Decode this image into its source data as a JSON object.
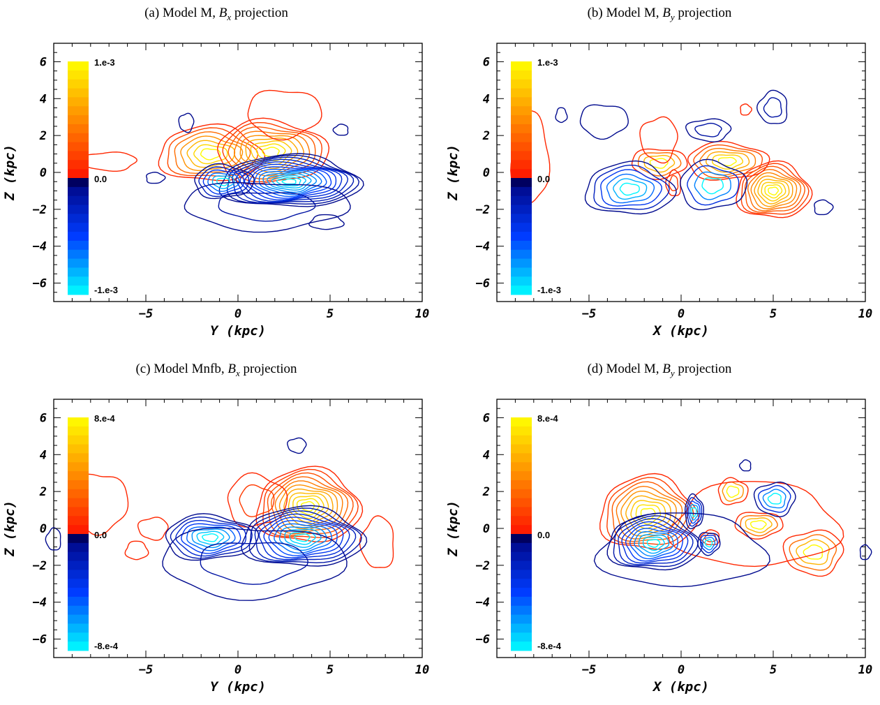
{
  "chart_data": [
    {
      "type": "contour",
      "panel": "a",
      "title_prefix": "(a) Model M, ",
      "title_sym": "B",
      "title_sub": "x",
      "title_suffix": " projection",
      "xlabel": "Y (kpc)",
      "ylabel": "Z (kpc)",
      "xlim": [
        -10,
        10
      ],
      "ylim": [
        -7,
        7
      ],
      "x_ticks": [
        -5,
        0,
        5,
        10
      ],
      "y_ticks": [
        -6,
        -4,
        -2,
        0,
        2,
        4,
        6
      ],
      "colorbar": {
        "max_label": "1.e-3",
        "mid_label": "0.0",
        "min_label": "-1.e-3"
      },
      "positive_blobs": [
        {
          "cx": -1.5,
          "cy": 1.0,
          "rx": 2.8,
          "ry": 1.5,
          "levels": 7
        },
        {
          "cx": 1.8,
          "cy": 1.1,
          "rx": 3.0,
          "ry": 1.7,
          "levels": 9
        },
        {
          "cx": 2.5,
          "cy": 3.2,
          "rx": 2.0,
          "ry": 1.3,
          "levels": 1
        },
        {
          "cx": -7.0,
          "cy": 0.6,
          "rx": 1.5,
          "ry": 0.5,
          "levels": 1
        }
      ],
      "negative_blobs": [
        {
          "cx": 2.8,
          "cy": -0.5,
          "rx": 3.8,
          "ry": 1.4,
          "levels": 14
        },
        {
          "cx": -0.8,
          "cy": -0.5,
          "rx": 1.6,
          "ry": 0.9,
          "levels": 6
        },
        {
          "cx": 1.5,
          "cy": -1.8,
          "rx": 4.5,
          "ry": 1.3,
          "levels": 2
        },
        {
          "cx": -2.8,
          "cy": 2.7,
          "rx": 0.4,
          "ry": 0.5,
          "levels": 1
        },
        {
          "cx": 5.6,
          "cy": 2.3,
          "rx": 0.4,
          "ry": 0.3,
          "levels": 1
        },
        {
          "cx": 4.8,
          "cy": -2.7,
          "rx": 0.9,
          "ry": 0.4,
          "levels": 1
        },
        {
          "cx": -4.5,
          "cy": -0.3,
          "rx": 0.5,
          "ry": 0.3,
          "levels": 1
        }
      ]
    },
    {
      "type": "contour",
      "panel": "b",
      "title_prefix": "(b) Model M, ",
      "title_sym": "B",
      "title_sub": "y",
      "title_suffix": " projection",
      "xlabel": "X (kpc)",
      "ylabel": "Z (kpc)",
      "xlim": [
        -10,
        10
      ],
      "ylim": [
        -7,
        7
      ],
      "x_ticks": [
        -5,
        0,
        5,
        10
      ],
      "y_ticks": [
        -6,
        -4,
        -2,
        0,
        2,
        4,
        6
      ],
      "colorbar": {
        "max_label": "1.e-3",
        "mid_label": "0.0",
        "min_label": "-1.e-3"
      },
      "positive_blobs": [
        {
          "cx": 5.0,
          "cy": -1.0,
          "rx": 2.0,
          "ry": 1.5,
          "levels": 10
        },
        {
          "cx": 2.5,
          "cy": 0.6,
          "rx": 2.2,
          "ry": 1.0,
          "levels": 6
        },
        {
          "cx": -1.2,
          "cy": 0.5,
          "rx": 1.5,
          "ry": 0.8,
          "levels": 4
        },
        {
          "cx": -1.2,
          "cy": 1.8,
          "rx": 1.0,
          "ry": 1.2,
          "levels": 1
        },
        {
          "cx": -0.4,
          "cy": -0.6,
          "rx": 0.4,
          "ry": 0.7,
          "levels": 2
        },
        {
          "cx": -8.2,
          "cy": 0.8,
          "rx": 1.0,
          "ry": 2.5,
          "levels": 1
        },
        {
          "cx": 3.5,
          "cy": 3.4,
          "rx": 0.3,
          "ry": 0.3,
          "levels": 1
        }
      ],
      "negative_blobs": [
        {
          "cx": -2.8,
          "cy": -0.9,
          "rx": 2.4,
          "ry": 1.4,
          "levels": 6
        },
        {
          "cx": 1.7,
          "cy": -0.7,
          "rx": 1.8,
          "ry": 1.3,
          "levels": 4
        },
        {
          "cx": -4.2,
          "cy": 2.8,
          "rx": 1.3,
          "ry": 0.9,
          "levels": 1
        },
        {
          "cx": 1.5,
          "cy": 2.3,
          "rx": 1.2,
          "ry": 0.6,
          "levels": 2
        },
        {
          "cx": 5.0,
          "cy": 3.5,
          "rx": 0.8,
          "ry": 0.9,
          "levels": 2
        },
        {
          "cx": -6.5,
          "cy": 3.1,
          "rx": 0.3,
          "ry": 0.4,
          "levels": 1
        },
        {
          "cx": 7.7,
          "cy": -1.9,
          "rx": 0.5,
          "ry": 0.4,
          "levels": 1
        }
      ]
    },
    {
      "type": "contour",
      "panel": "c",
      "title_prefix": "(c) Model Mnfb, ",
      "title_sym": "B",
      "title_sub": "x",
      "title_suffix": " projection",
      "xlabel": "Y (kpc)",
      "ylabel": "Z (kpc)",
      "xlim": [
        -10,
        10
      ],
      "ylim": [
        -7,
        7
      ],
      "x_ticks": [
        -5,
        0,
        5,
        10
      ],
      "y_ticks": [
        -6,
        -4,
        -2,
        0,
        2,
        4,
        6
      ],
      "colorbar": {
        "max_label": "8.e-4",
        "mid_label": "0.0",
        "min_label": "-8.e-4"
      },
      "positive_blobs": [
        {
          "cx": 3.8,
          "cy": 1.2,
          "rx": 2.8,
          "ry": 2.0,
          "levels": 11
        },
        {
          "cx": 1.0,
          "cy": 1.5,
          "rx": 1.6,
          "ry": 1.4,
          "levels": 2
        },
        {
          "cx": -7.5,
          "cy": 1.4,
          "rx": 1.5,
          "ry": 1.6,
          "levels": 1
        },
        {
          "cx": -4.6,
          "cy": 0.0,
          "rx": 0.8,
          "ry": 0.6,
          "levels": 1
        },
        {
          "cx": 7.6,
          "cy": -0.8,
          "rx": 0.9,
          "ry": 1.4,
          "levels": 1
        },
        {
          "cx": -5.5,
          "cy": -1.2,
          "rx": 0.6,
          "ry": 0.5,
          "levels": 1
        }
      ],
      "negative_blobs": [
        {
          "cx": 3.5,
          "cy": -0.5,
          "rx": 3.3,
          "ry": 1.6,
          "levels": 11
        },
        {
          "cx": -1.5,
          "cy": -0.5,
          "rx": 2.5,
          "ry": 1.2,
          "levels": 8
        },
        {
          "cx": 0.8,
          "cy": -1.8,
          "rx": 5.0,
          "ry": 1.9,
          "levels": 2
        },
        {
          "cx": 3.2,
          "cy": 4.5,
          "rx": 0.5,
          "ry": 0.4,
          "levels": 1
        },
        {
          "cx": -10.0,
          "cy": -0.6,
          "rx": 0.4,
          "ry": 0.6,
          "levels": 1
        }
      ]
    },
    {
      "type": "contour",
      "panel": "d",
      "title_prefix": "(d) Model M, ",
      "title_sym": "B",
      "title_sub": "y",
      "title_suffix": " projection",
      "xlabel": "X (kpc)",
      "ylabel": "Z (kpc)",
      "xlim": [
        -10,
        10
      ],
      "ylim": [
        -7,
        7
      ],
      "x_ticks": [
        -5,
        0,
        5,
        10
      ],
      "y_ticks": [
        -6,
        -4,
        -2,
        0,
        2,
        4,
        6
      ],
      "colorbar": {
        "max_label": "8.e-4",
        "mid_label": "0.0",
        "min_label": "-8.e-4"
      },
      "positive_blobs": [
        {
          "cx": -1.8,
          "cy": 0.8,
          "rx": 2.6,
          "ry": 2.0,
          "levels": 9
        },
        {
          "cx": 2.8,
          "cy": 2.0,
          "rx": 0.8,
          "ry": 0.7,
          "levels": 3
        },
        {
          "cx": 4.2,
          "cy": 0.2,
          "rx": 1.3,
          "ry": 0.7,
          "levels": 4
        },
        {
          "cx": 7.2,
          "cy": -1.3,
          "rx": 1.6,
          "ry": 1.2,
          "levels": 4
        },
        {
          "cx": 1.6,
          "cy": -0.5,
          "rx": 0.5,
          "ry": 0.4,
          "levels": 2
        },
        {
          "cx": 4.0,
          "cy": 0.2,
          "rx": 4.5,
          "ry": 2.3,
          "levels": 1
        }
      ],
      "negative_blobs": [
        {
          "cx": -1.5,
          "cy": -0.8,
          "rx": 2.5,
          "ry": 1.5,
          "levels": 10
        },
        {
          "cx": 0.7,
          "cy": 0.9,
          "rx": 0.5,
          "ry": 0.9,
          "levels": 5
        },
        {
          "cx": 1.5,
          "cy": -0.8,
          "rx": 0.6,
          "ry": 0.6,
          "levels": 4
        },
        {
          "cx": 5.1,
          "cy": 1.6,
          "rx": 1.1,
          "ry": 0.9,
          "levels": 4
        },
        {
          "cx": 3.5,
          "cy": 3.4,
          "rx": 0.3,
          "ry": 0.3,
          "levels": 1
        },
        {
          "cx": 0.0,
          "cy": -1.2,
          "rx": 4.5,
          "ry": 2.0,
          "levels": 1
        },
        {
          "cx": 10.0,
          "cy": -1.3,
          "rx": 0.3,
          "ry": 0.4,
          "levels": 1
        }
      ]
    }
  ]
}
